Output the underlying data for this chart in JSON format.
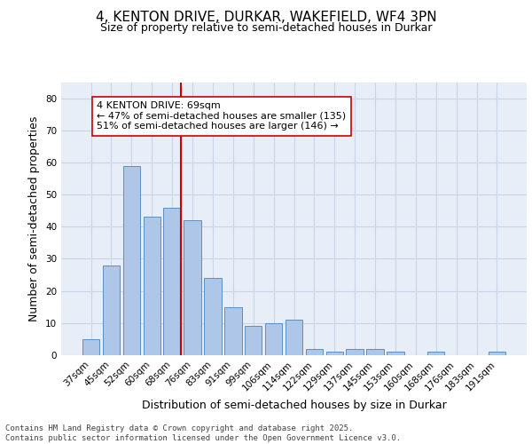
{
  "title_line1": "4, KENTON DRIVE, DURKAR, WAKEFIELD, WF4 3PN",
  "title_line2": "Size of property relative to semi-detached houses in Durkar",
  "xlabel": "Distribution of semi-detached houses by size in Durkar",
  "ylabel": "Number of semi-detached properties",
  "categories": [
    "37sqm",
    "45sqm",
    "52sqm",
    "60sqm",
    "68sqm",
    "76sqm",
    "83sqm",
    "91sqm",
    "99sqm",
    "106sqm",
    "114sqm",
    "122sqm",
    "129sqm",
    "137sqm",
    "145sqm",
    "153sqm",
    "160sqm",
    "168sqm",
    "176sqm",
    "183sqm",
    "191sqm"
  ],
  "values": [
    5,
    28,
    59,
    43,
    46,
    42,
    24,
    15,
    9,
    10,
    11,
    2,
    1,
    2,
    2,
    1,
    0,
    1,
    0,
    0,
    1
  ],
  "bar_color": "#aec6e8",
  "bar_edge_color": "#5a8fc2",
  "vline_index": 4,
  "vline_color": "#cc0000",
  "annotation_text": "4 KENTON DRIVE: 69sqm\n← 47% of semi-detached houses are smaller (135)\n51% of semi-detached houses are larger (146) →",
  "annotation_box_color": "#ffffff",
  "annotation_box_edge": "#cc0000",
  "ylim": [
    0,
    85
  ],
  "yticks": [
    0,
    10,
    20,
    30,
    40,
    50,
    60,
    70,
    80
  ],
  "grid_color": "#c8d4e8",
  "background_color": "#e8eef8",
  "footer_text": "Contains HM Land Registry data © Crown copyright and database right 2025.\nContains public sector information licensed under the Open Government Licence v3.0.",
  "title_fontsize": 11,
  "subtitle_fontsize": 9,
  "axis_label_fontsize": 9,
  "tick_fontsize": 7.5,
  "annotation_fontsize": 8,
  "footer_fontsize": 6.5
}
